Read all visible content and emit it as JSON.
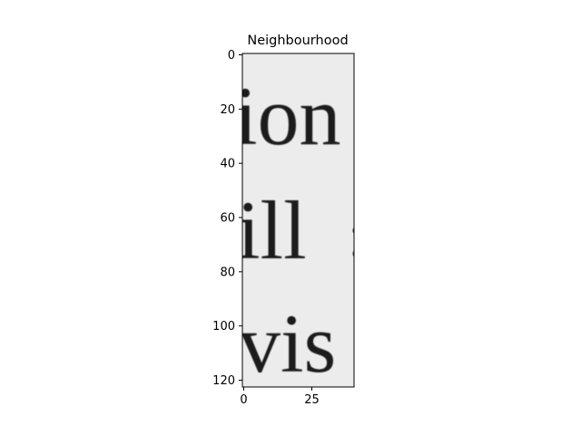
{
  "title": "Neighbourhood",
  "image_text_lines": [
    "ion",
    "ill",
    "vis"
  ],
  "image_stray_marks": [
    ":",
    "."
  ],
  "axes": {
    "x_ticks": [
      {
        "value": 0,
        "label": "0"
      },
      {
        "value": 25,
        "label": "25"
      }
    ],
    "y_ticks": [
      {
        "value": 0,
        "label": "0"
      },
      {
        "value": 20,
        "label": "20"
      },
      {
        "value": 40,
        "label": "40"
      },
      {
        "value": 60,
        "label": "60"
      },
      {
        "value": 80,
        "label": "80"
      },
      {
        "value": 100,
        "label": "100"
      },
      {
        "value": 120,
        "label": "120"
      }
    ],
    "xlim": [
      -0.5,
      40.5
    ],
    "ylim": [
      122.5,
      -0.5
    ]
  },
  "colors": {
    "image_background": "#ececec",
    "ink": "#1b1b1b",
    "frame": "#000000"
  }
}
